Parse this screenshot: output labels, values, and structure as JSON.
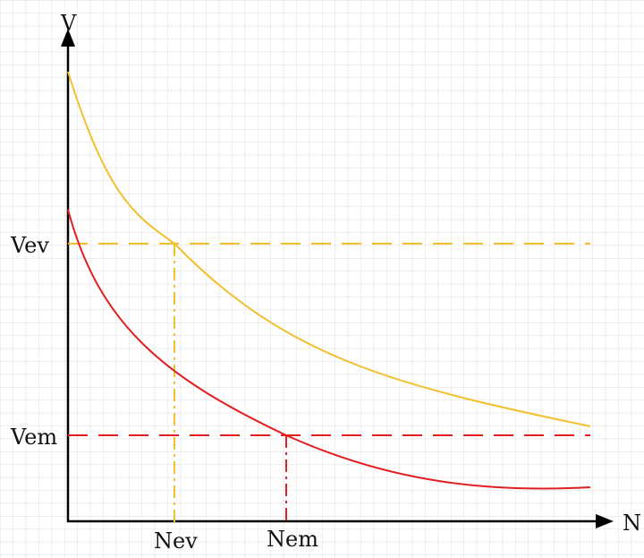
{
  "labels": {
    "y_axis": "V",
    "x_axis": "N",
    "vev": "Vev",
    "vem": "Vem",
    "nev": "Nev",
    "nem": "Nem"
  },
  "colors": {
    "grid": "#dcdcdc",
    "axis": "#000000",
    "yellow": "#f2c02c",
    "red": "#e02020"
  }
}
